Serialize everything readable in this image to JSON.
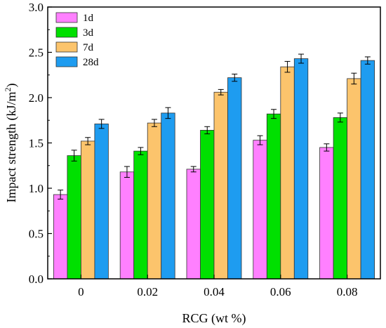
{
  "chart_data": {
    "type": "bar",
    "xlabel": "RCG (wt %)",
    "ylabel_main": "Impact strength (kJ/m",
    "ylabel_sup": "2",
    "ylabel_close": ")",
    "ylim": [
      0,
      3.0
    ],
    "yticks": [
      "0.0",
      "0.5",
      "1.0",
      "1.5",
      "2.0",
      "2.5",
      "3.0"
    ],
    "categories": [
      "0",
      "0.02",
      "0.04",
      "0.06",
      "0.08"
    ],
    "legend_position": "top-left",
    "grid": false,
    "series": [
      {
        "name": "1d",
        "color": "#ff80ff",
        "values": [
          0.93,
          1.18,
          1.21,
          1.53,
          1.45
        ],
        "errors": [
          0.05,
          0.06,
          0.03,
          0.05,
          0.04
        ]
      },
      {
        "name": "3d",
        "color": "#00e000",
        "values": [
          1.36,
          1.41,
          1.64,
          1.82,
          1.78
        ],
        "errors": [
          0.06,
          0.04,
          0.04,
          0.05,
          0.05
        ]
      },
      {
        "name": "7d",
        "color": "#fcc46c",
        "values": [
          1.52,
          1.72,
          2.06,
          2.34,
          2.21
        ],
        "errors": [
          0.04,
          0.04,
          0.03,
          0.06,
          0.06
        ]
      },
      {
        "name": "28d",
        "color": "#1e9cf0",
        "values": [
          1.71,
          1.83,
          2.22,
          2.43,
          2.41
        ],
        "errors": [
          0.05,
          0.06,
          0.04,
          0.05,
          0.04
        ]
      }
    ]
  }
}
